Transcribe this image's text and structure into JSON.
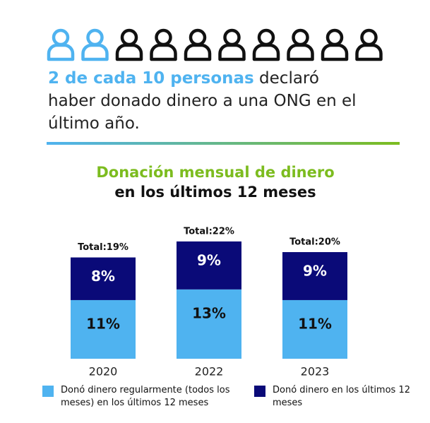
{
  "icons": {
    "count": 10,
    "highlighted": 2,
    "highlight_color": "#4fb3f0",
    "color": "#111111"
  },
  "headline": {
    "highlight": "2 de cada 10 personas",
    "text": " declaró haber donado dinero a una ONG en el último año."
  },
  "chart_data": {
    "type": "stacked_bar",
    "title": "Donación mensual de dinero",
    "subtitle": "en los últimos 12 meses",
    "categories": [
      "2020",
      "2022",
      "2023"
    ],
    "total_labels": [
      "Total:19%",
      "Total:22%",
      "Total:20%"
    ],
    "series": [
      {
        "name": "Donó dinero regularmente (todos los meses)  en los últimos 12 meses",
        "color": "#4fb3f0",
        "values": [
          11,
          13,
          11
        ],
        "value_labels": [
          "11%",
          "13%",
          "11%"
        ]
      },
      {
        "name": "Donó dinero en los últimos 12 meses",
        "color": "#0a0a78",
        "values": [
          8,
          9,
          9
        ],
        "value_labels": [
          "8%",
          "9%",
          "9%"
        ]
      }
    ]
  }
}
